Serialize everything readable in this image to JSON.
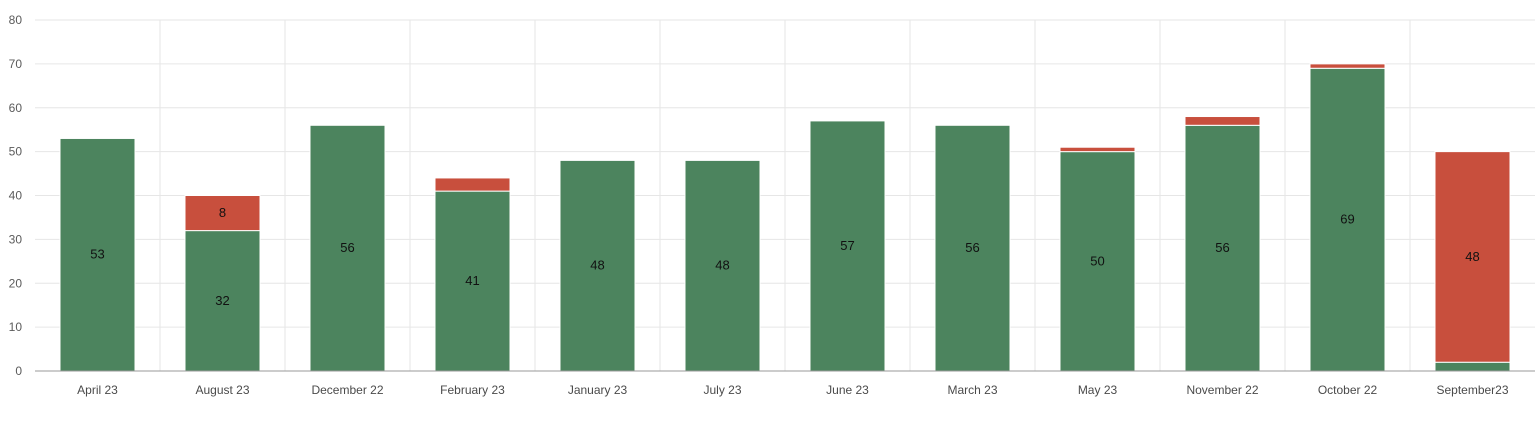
{
  "chart_data": {
    "type": "bar",
    "stacked": true,
    "title": "",
    "xlabel": "",
    "ylabel": "",
    "ylim": [
      0,
      80
    ],
    "yticks": [
      0,
      10,
      20,
      30,
      40,
      50,
      60,
      70,
      80
    ],
    "grid": true,
    "legend": "none",
    "categories": [
      "April 23",
      "August 23",
      "December 22",
      "February 23",
      "January 23",
      "July 23",
      "June 23",
      "March 23",
      "May 23",
      "November 22",
      "October 22",
      "September23"
    ],
    "series": [
      {
        "color": "#4c845e",
        "values": [
          53,
          32,
          56,
          41,
          48,
          48,
          57,
          56,
          50,
          56,
          69,
          2
        ],
        "labels": [
          "53",
          "32",
          "56",
          "41",
          "48",
          "48",
          "57",
          "56",
          "50",
          "56",
          "69",
          ""
        ]
      },
      {
        "color": "#c84f3d",
        "values": [
          0,
          8,
          0,
          3,
          0,
          0,
          0,
          0,
          1,
          2,
          1,
          48
        ],
        "labels": [
          "",
          "8",
          "",
          "",
          "",
          "",
          "",
          "",
          "",
          "",
          "",
          "48"
        ]
      }
    ]
  }
}
